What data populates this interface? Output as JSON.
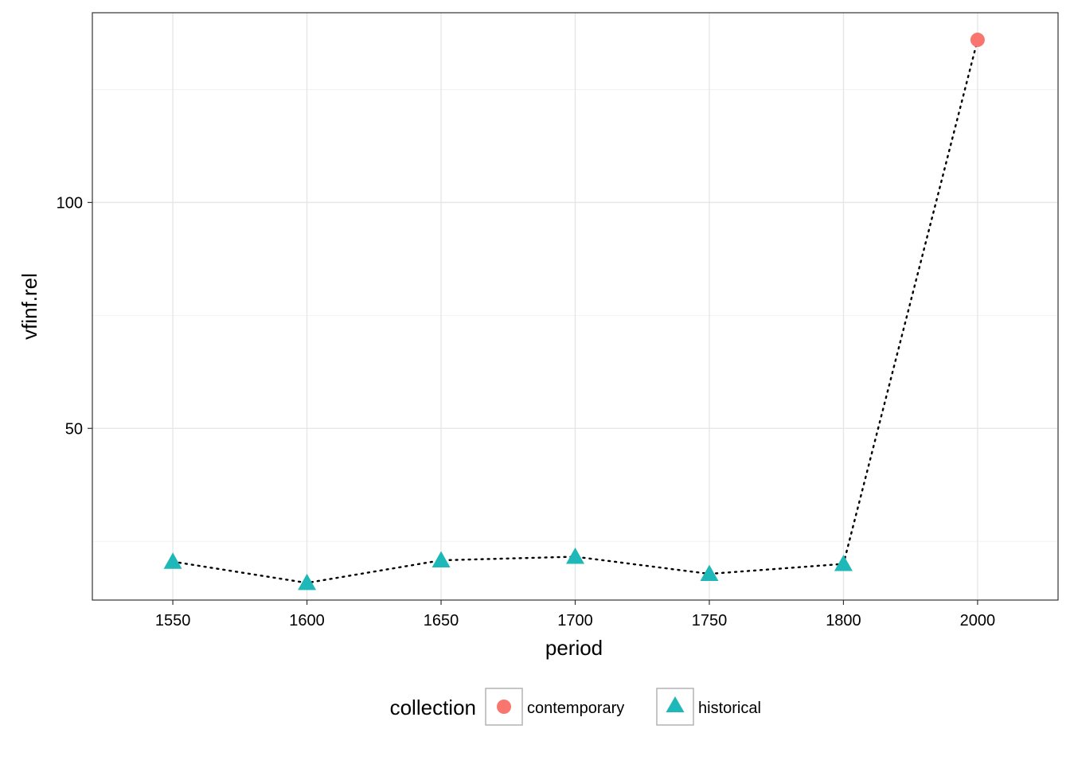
{
  "chart_data": {
    "type": "line",
    "xlabel": "period",
    "ylabel": "vfinf.rel",
    "categories": [
      "1550",
      "1600",
      "1650",
      "1700",
      "1750",
      "1800",
      "2000"
    ],
    "yticks": [
      50,
      100
    ],
    "ylim": [
      12,
      142
    ],
    "grid": true,
    "line_style": "dotted",
    "points": [
      {
        "x": "1550",
        "y": 20.5,
        "collection": "historical"
      },
      {
        "x": "1600",
        "y": 15.8,
        "collection": "historical"
      },
      {
        "x": "1650",
        "y": 20.8,
        "collection": "historical"
      },
      {
        "x": "1700",
        "y": 21.6,
        "collection": "historical"
      },
      {
        "x": "1750",
        "y": 17.8,
        "collection": "historical"
      },
      {
        "x": "1800",
        "y": 20.0,
        "collection": "historical"
      },
      {
        "x": "2000",
        "y": 136.0,
        "collection": "contemporary"
      }
    ],
    "legend": {
      "title": "collection",
      "position": "bottom",
      "entries": [
        {
          "label": "contemporary",
          "shape": "circle",
          "color": "#F8766D"
        },
        {
          "label": "historical",
          "shape": "triangle",
          "color": "#1FB8B8"
        }
      ]
    }
  }
}
